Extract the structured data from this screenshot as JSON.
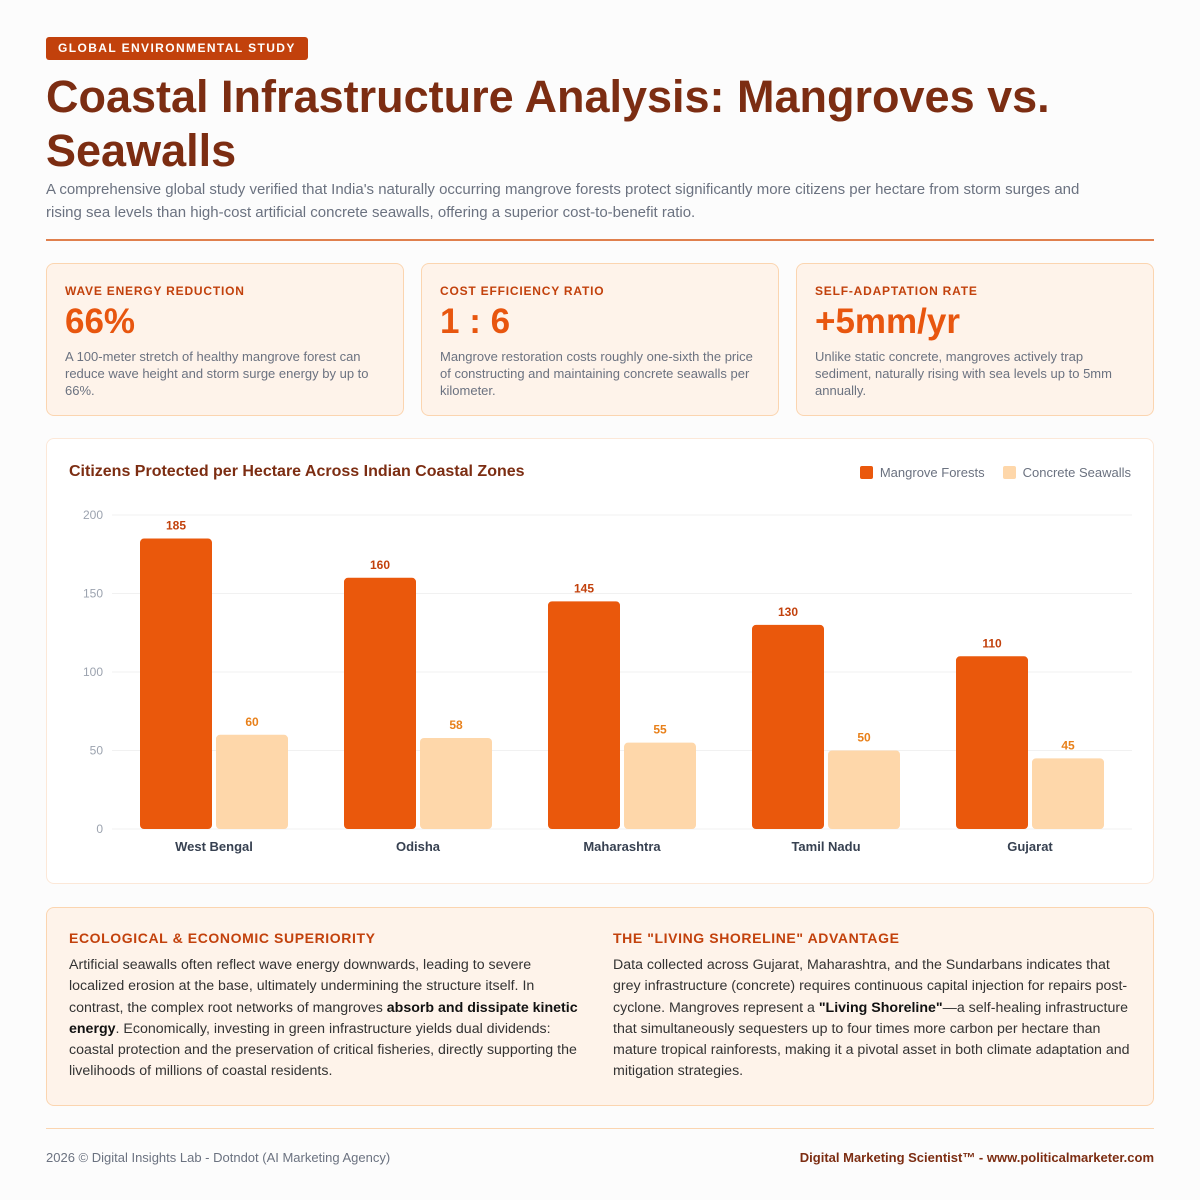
{
  "badge": "GLOBAL ENVIRONMENTAL STUDY",
  "title": "Coastal Infrastructure Analysis: Mangroves vs. Seawalls",
  "subtitle": "A comprehensive global study verified that India's naturally occurring mangrove forests protect significantly more citizens per hectare from storm surges and rising sea levels than high-cost artificial concrete seawalls, offering a superior cost-to-benefit ratio.",
  "stats": [
    {
      "label": "WAVE ENERGY REDUCTION",
      "value": "66%",
      "desc": "A 100-meter stretch of healthy mangrove forest can reduce wave height and storm surge energy by up to 66%."
    },
    {
      "label": "COST EFFICIENCY RATIO",
      "value": "1 : 6",
      "desc": "Mangrove restoration costs roughly one-sixth the price of constructing and maintaining concrete seawalls per kilometer."
    },
    {
      "label": "SELF-ADAPTATION RATE",
      "value": "+5mm/yr",
      "desc": "Unlike static concrete, mangroves actively trap sediment, naturally rising with sea levels up to 5mm annually."
    }
  ],
  "chart_data": {
    "type": "bar",
    "title": "Citizens Protected per Hectare Across Indian Coastal Zones",
    "categories": [
      "West Bengal",
      "Odisha",
      "Maharashtra",
      "Tamil Nadu",
      "Gujarat"
    ],
    "series": [
      {
        "name": "Mangrove Forests",
        "values": [
          185,
          160,
          145,
          130,
          110
        ],
        "color": "#ea580c",
        "label_color": "#c2410c"
      },
      {
        "name": "Concrete Seawalls",
        "values": [
          60,
          58,
          55,
          50,
          45
        ],
        "color": "#fed7aa",
        "label_color": "#e8801a"
      }
    ],
    "ylim": [
      0,
      200
    ],
    "yticks": [
      0,
      50,
      100,
      150,
      200
    ],
    "grid": true,
    "legend": "top-right"
  },
  "info": {
    "left": {
      "heading": "ECOLOGICAL & ECONOMIC SUPERIORITY",
      "text_a": "Artificial seawalls often reflect wave energy downwards, leading to severe localized erosion at the base, ultimately undermining the structure itself. In contrast, the complex root networks of mangroves ",
      "text_bold": "absorb and dissipate kinetic energy",
      "text_b": ". Economically, investing in green infrastructure yields dual dividends: coastal protection and the preservation of critical fisheries, directly supporting the livelihoods of millions of coastal residents."
    },
    "right": {
      "heading": "THE \"LIVING SHORELINE\" ADVANTAGE",
      "text_a": "Data collected across Gujarat, Maharashtra, and the Sundarbans indicates that grey infrastructure (concrete) requires continuous capital injection for repairs post-cyclone. Mangroves represent a ",
      "text_bold": "\"Living Shoreline\"",
      "text_b": "—a self-healing infrastructure that simultaneously sequesters up to four times more carbon per hectare than mature tropical rainforests, making it a pivotal asset in both climate adaptation and mitigation strategies."
    }
  },
  "footer": {
    "left": "2026 © Digital Insights Lab - Dotndot (AI Marketing Agency)",
    "right": "Digital Marketing Scientist™ - www.politicalmarketer.com"
  }
}
